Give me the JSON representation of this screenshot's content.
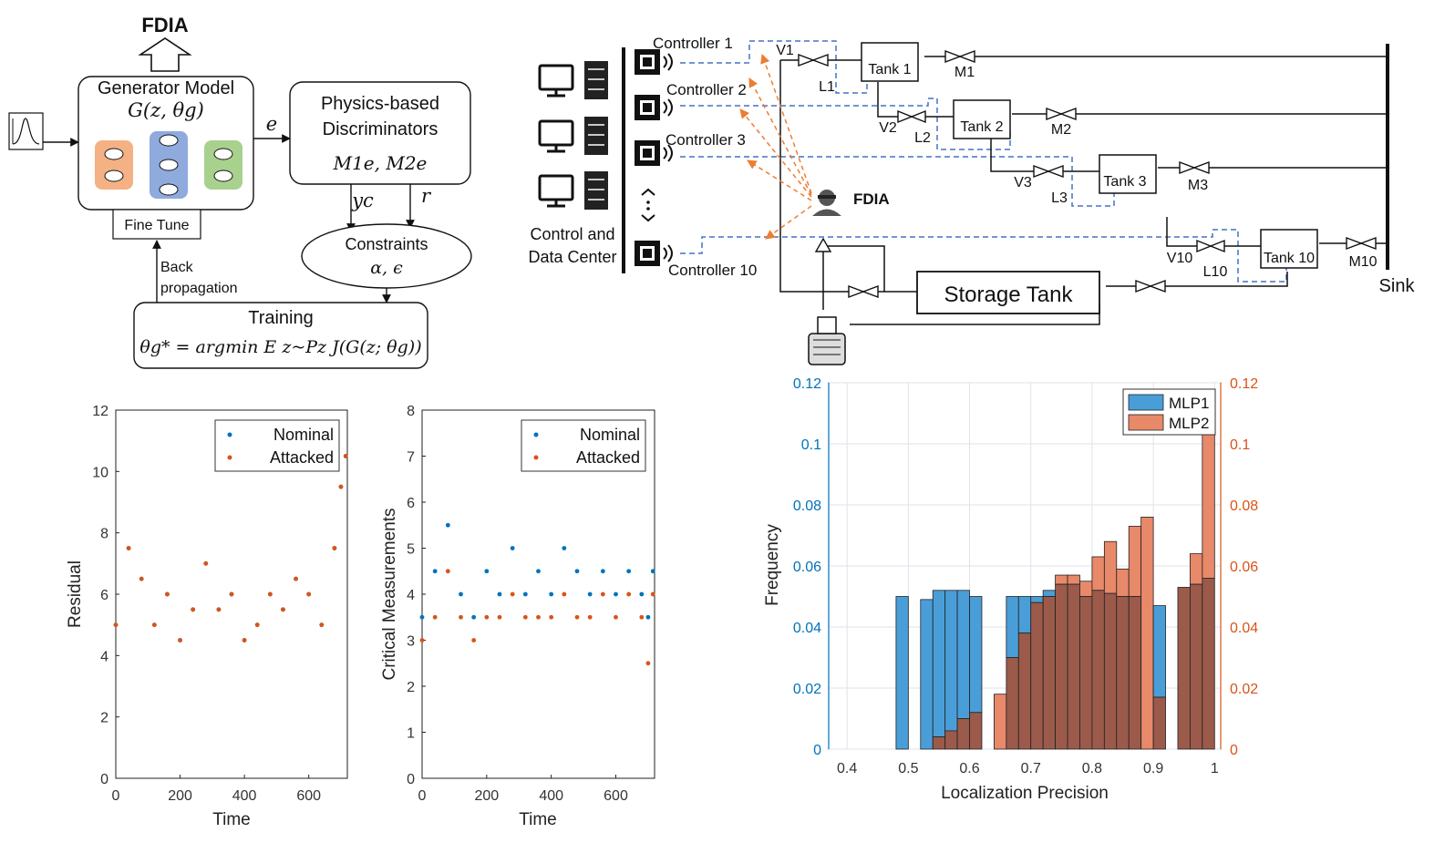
{
  "block_diagram": {
    "fdia_label": "FDIA",
    "generator_title": "Generator Model",
    "generator_formula": "G(z, θg)",
    "fine_tune": "Fine Tune",
    "edge_e": "e",
    "discriminator_line1": "Physics-based",
    "discriminator_line2": "Discriminators",
    "discriminator_formula": "M1e, M2e",
    "edge_yc": "yc",
    "edge_r": "r",
    "constraints_title": "Constraints",
    "constraints_formula": "α, ϵ",
    "backprop_line1": "Back",
    "backprop_line2": "propagation",
    "training_title": "Training",
    "training_formula": "θg* = argmin E z~Pz J(G(z; θg))"
  },
  "system_diagram": {
    "controllers": [
      "Controller 1",
      "Controller 2",
      "Controller 3",
      "Controller 10"
    ],
    "control_center_line1": "Control and",
    "control_center_line2": "Data Center",
    "fdia": "FDIA",
    "tanks": [
      "Tank 1",
      "Tank 2",
      "Tank 3",
      "Tank 10"
    ],
    "valves": [
      "V1",
      "V2",
      "V3",
      "V10"
    ],
    "levels": [
      "L1",
      "L2",
      "L3",
      "L10"
    ],
    "meters": [
      "M1",
      "M2",
      "M3",
      "M10"
    ],
    "storage_tank": "Storage Tank",
    "sink": "Sink"
  },
  "colors": {
    "nominal": "#0072BD",
    "attacked": "#D95319",
    "mlp1_fill": "#4A9ED8",
    "mlp2_fill": "#E8896A",
    "overlap_fill": "#9B5A4A",
    "dashed_link": "#4472C4",
    "attack_arrow": "#ED7D31"
  },
  "chart_data": [
    {
      "type": "scatter",
      "xlabel": "Time",
      "ylabel": "Residual",
      "xlim": [
        0,
        720
      ],
      "ylim": [
        0,
        12
      ],
      "xticks": [
        0,
        200,
        400,
        600
      ],
      "yticks": [
        0,
        2,
        4,
        6,
        8,
        10,
        12
      ],
      "legend": "top-right",
      "series": [
        {
          "name": "Nominal",
          "x": [
            0,
            40,
            80,
            120,
            160,
            200,
            240,
            280,
            320,
            360,
            400,
            440,
            480,
            520,
            560,
            600,
            640,
            680,
            700,
            715
          ],
          "y": [
            5.0,
            7.5,
            6.5,
            5.0,
            6.0,
            4.5,
            5.5,
            7.0,
            5.5,
            6.0,
            4.5,
            5.0,
            6.0,
            5.5,
            6.5,
            6.0,
            5.0,
            7.5,
            9.5,
            10.5
          ]
        },
        {
          "name": "Attacked",
          "x": [
            0,
            40,
            80,
            120,
            160,
            200,
            240,
            280,
            320,
            360,
            400,
            440,
            480,
            520,
            560,
            600,
            640,
            680,
            700,
            715
          ],
          "y": [
            5.0,
            7.5,
            6.5,
            5.0,
            6.0,
            4.5,
            5.5,
            7.0,
            5.5,
            6.0,
            4.5,
            5.0,
            6.0,
            5.5,
            6.5,
            6.0,
            5.0,
            7.5,
            9.5,
            10.5
          ]
        }
      ]
    },
    {
      "type": "scatter",
      "xlabel": "Time",
      "ylabel": "Critical Measurements",
      "xlim": [
        0,
        720
      ],
      "ylim": [
        0,
        8
      ],
      "xticks": [
        0,
        200,
        400,
        600
      ],
      "yticks": [
        0,
        1,
        2,
        3,
        4,
        5,
        6,
        7,
        8
      ],
      "legend": "top-right",
      "series": [
        {
          "name": "Nominal",
          "x": [
            0,
            40,
            80,
            120,
            160,
            200,
            240,
            280,
            320,
            360,
            400,
            440,
            480,
            520,
            560,
            600,
            640,
            680,
            700,
            715
          ],
          "y": [
            3.5,
            4.5,
            5.5,
            4.0,
            3.5,
            4.5,
            4.0,
            5.0,
            4.0,
            4.5,
            4.0,
            5.0,
            4.5,
            4.0,
            4.5,
            4.0,
            4.5,
            4.0,
            3.5,
            4.5
          ]
        },
        {
          "name": "Attacked",
          "x": [
            0,
            40,
            80,
            120,
            160,
            200,
            240,
            280,
            320,
            360,
            400,
            440,
            480,
            520,
            560,
            600,
            640,
            680,
            700,
            715
          ],
          "y": [
            3.0,
            3.5,
            4.5,
            3.5,
            3.0,
            3.5,
            3.5,
            4.0,
            3.5,
            3.5,
            3.5,
            4.0,
            3.5,
            3.5,
            4.0,
            3.5,
            4.0,
            3.5,
            2.5,
            4.0
          ]
        }
      ]
    },
    {
      "type": "bar",
      "xlabel": "Localization Precision",
      "ylabel": "Frequency",
      "xlim": [
        0.37,
        1.01
      ],
      "ylim": [
        0,
        0.12
      ],
      "xticks": [
        0.4,
        0.5,
        0.6,
        0.7,
        0.8,
        0.9,
        1
      ],
      "yticks": [
        0,
        0.02,
        0.04,
        0.06,
        0.08,
        0.1,
        0.12
      ],
      "grid": true,
      "legend": "top-right",
      "bin_centers": [
        0.49,
        0.53,
        0.55,
        0.57,
        0.59,
        0.61,
        0.63,
        0.65,
        0.67,
        0.69,
        0.71,
        0.73,
        0.75,
        0.77,
        0.79,
        0.81,
        0.83,
        0.85,
        0.87,
        0.89,
        0.91,
        0.93,
        0.95,
        0.97,
        0.99
      ],
      "bin_width": 0.02,
      "series": [
        {
          "name": "MLP1",
          "values": [
            0.05,
            0.049,
            0.052,
            0.052,
            0.052,
            0.05,
            0.0,
            0.0,
            0.05,
            0.05,
            0.05,
            0.052,
            0.054,
            0.054,
            0.05,
            0.052,
            0.051,
            0.05,
            0.05,
            0.0,
            0.047,
            0.0,
            0.053,
            0.054,
            0.056
          ]
        },
        {
          "name": "MLP2",
          "values": [
            0.0,
            0.0,
            0.004,
            0.006,
            0.01,
            0.012,
            0.0,
            0.018,
            0.03,
            0.038,
            0.048,
            0.05,
            0.057,
            0.057,
            0.055,
            0.063,
            0.068,
            0.059,
            0.073,
            0.076,
            0.017,
            0.0,
            0.053,
            0.064,
            0.103
          ]
        }
      ]
    }
  ]
}
